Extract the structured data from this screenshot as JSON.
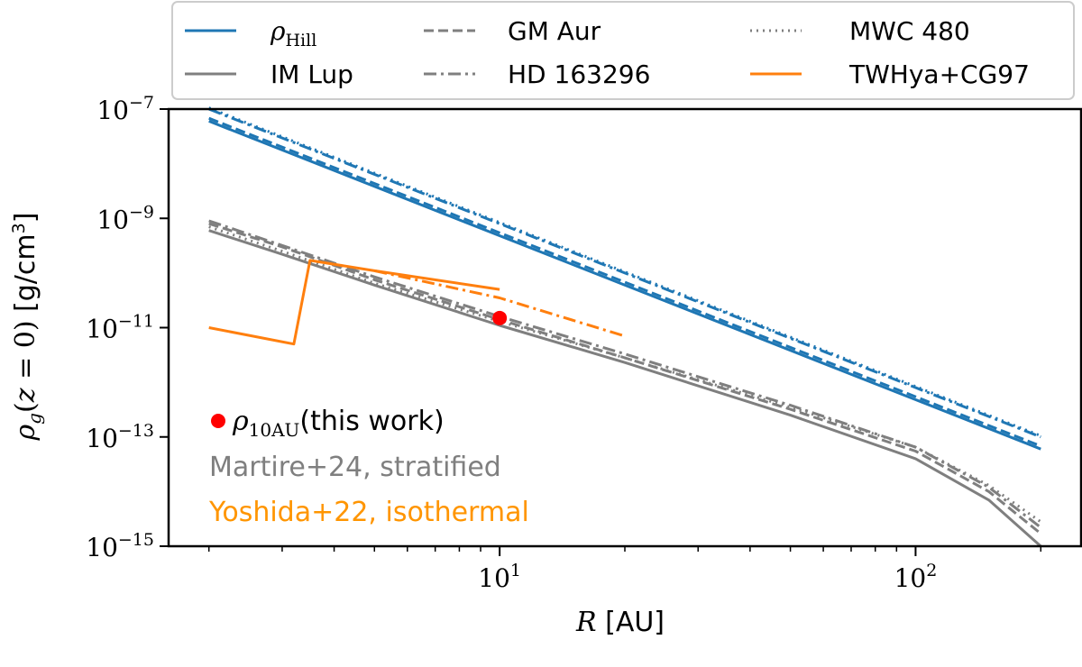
{
  "chart_data": {
    "type": "line",
    "xlabel": "R [AU]",
    "ylabel": "ρg(z = 0) [g/cm³]",
    "xscale": "log",
    "yscale": "log",
    "xlim": [
      1.6,
      250
    ],
    "ylim": [
      1e-15,
      1e-07
    ],
    "x_ticks": [
      {
        "value": 10,
        "base": "10",
        "exp": "1"
      },
      {
        "value": 100,
        "base": "10",
        "exp": "2"
      }
    ],
    "y_ticks": [
      {
        "value": 1e-07,
        "base": "10",
        "exp": "−7"
      },
      {
        "value": 1e-09,
        "base": "10",
        "exp": "−9"
      },
      {
        "value": 1e-11,
        "base": "10",
        "exp": "−11"
      },
      {
        "value": 1e-13,
        "base": "10",
        "exp": "−13"
      },
      {
        "value": 1e-15,
        "base": "10",
        "exp": "−15"
      }
    ],
    "legend": {
      "placement": "top, outside plot",
      "entries": [
        {
          "label": "ρHill",
          "color": "#1f77b4",
          "dash": "solid"
        },
        {
          "label": "GM Aur",
          "color": "#7f7f7f",
          "dash": "dashed"
        },
        {
          "label": "MWC 480",
          "color": "#7f7f7f",
          "dash": "dotted"
        },
        {
          "label": "IM Lup",
          "color": "#7f7f7f",
          "dash": "solid"
        },
        {
          "label": "HD 163296",
          "color": "#7f7f7f",
          "dash": "dashdot"
        },
        {
          "label": "TWHya+CG97",
          "color": "#ff7f0e",
          "dash": "solid"
        }
      ]
    },
    "series": [
      {
        "group": "hill",
        "color": "#1f77b4",
        "dash": "solid",
        "x": [
          2,
          200
        ],
        "y": [
          6e-08,
          6e-14
        ]
      },
      {
        "group": "hill",
        "color": "#1f77b4",
        "dash": "dashed",
        "x": [
          2,
          200
        ],
        "y": [
          6.8e-08,
          6.8e-14
        ]
      },
      {
        "group": "hill",
        "color": "#1f77b4",
        "dash": "dotted",
        "x": [
          2,
          200
        ],
        "y": [
          1.05e-07,
          1.05e-13
        ]
      },
      {
        "group": "hill",
        "color": "#1f77b4",
        "dash": "dashdot",
        "x": [
          2,
          200
        ],
        "y": [
          1e-07,
          1e-13
        ]
      },
      {
        "name": "IM Lup",
        "color": "#7f7f7f",
        "dash": "solid",
        "x": [
          2,
          3,
          5,
          10,
          20,
          50,
          100,
          150,
          200
        ],
        "y": [
          6e-10,
          2.2e-10,
          6e-11,
          1.1e-11,
          2.3e-12,
          2.5e-13,
          4e-14,
          7e-15,
          1e-15
        ]
      },
      {
        "name": "GM Aur",
        "color": "#7f7f7f",
        "dash": "dashed",
        "x": [
          2,
          3,
          5,
          10,
          20,
          50,
          100,
          150,
          200
        ],
        "y": [
          8e-10,
          3e-10,
          7.5e-11,
          1.4e-11,
          2.8e-12,
          3.2e-13,
          5.5e-14,
          1e-14,
          1.7e-15
        ]
      },
      {
        "name": "MWC 480",
        "color": "#7f7f7f",
        "dash": "dotted",
        "x": [
          2,
          3,
          5,
          10,
          20,
          50,
          100,
          150,
          200
        ],
        "y": [
          7e-10,
          2.5e-10,
          6.5e-11,
          1.3e-11,
          2.8e-12,
          3.5e-13,
          6.5e-14,
          1.3e-14,
          2.8e-15
        ]
      },
      {
        "name": "HD 163296",
        "color": "#7f7f7f",
        "dash": "dashdot",
        "x": [
          2,
          3,
          5,
          10,
          20,
          50,
          100,
          150,
          200
        ],
        "y": [
          9e-10,
          3.2e-10,
          8.5e-11,
          1.6e-11,
          3.3e-12,
          3.8e-13,
          6.5e-14,
          1.2e-14,
          2.2e-15
        ]
      },
      {
        "name": "TWHya+CG97",
        "color": "#ff7f0e",
        "dash": "solid",
        "x": [
          2,
          3.2,
          3.5,
          5,
          10
        ],
        "y": [
          1e-11,
          5e-12,
          1.7e-10,
          1.1e-10,
          5e-11
        ]
      },
      {
        "group": "twhya-ext",
        "color": "#ff7f0e",
        "dash": "dashdot",
        "x": [
          5,
          10,
          20
        ],
        "y": [
          1.1e-10,
          3.5e-11,
          7e-12
        ]
      }
    ],
    "points": [
      {
        "label": "ρ10AU (this work)",
        "x": 10,
        "y": 1.5e-11,
        "color": "#ff0000"
      }
    ],
    "annotations": {
      "point_label_main": "ρ",
      "point_label_sub": "10AU",
      "point_label_rest": "(this work)",
      "gray_note": "Martire+24, stratified",
      "gray_color": "#7f7f7f",
      "orange_note": "Yoshida+22, isothermal",
      "orange_color": "#ff9500"
    },
    "grid": false
  }
}
